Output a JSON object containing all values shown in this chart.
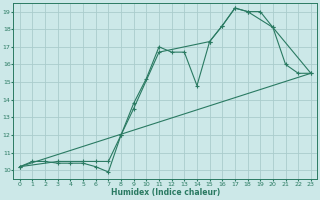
{
  "line1": {
    "x": [
      0,
      1,
      2,
      3,
      4,
      5,
      6,
      7,
      8,
      9,
      10,
      11,
      12,
      13,
      14,
      15,
      16,
      17,
      18,
      19,
      20,
      21,
      22,
      23
    ],
    "y": [
      10.2,
      10.5,
      10.5,
      10.4,
      10.4,
      10.4,
      10.2,
      9.9,
      12.0,
      13.8,
      15.2,
      17.0,
      16.7,
      16.7,
      14.8,
      17.3,
      18.2,
      19.2,
      19.0,
      19.0,
      18.1,
      16.0,
      15.5,
      15.5
    ]
  },
  "line2": {
    "x": [
      0,
      3,
      5,
      6,
      7,
      8,
      9,
      11,
      15,
      16,
      17,
      18,
      20,
      23
    ],
    "y": [
      10.2,
      10.5,
      10.5,
      10.5,
      10.5,
      12.0,
      13.5,
      16.7,
      17.3,
      18.2,
      19.2,
      19.0,
      18.1,
      15.5
    ]
  },
  "line3": {
    "x": [
      0,
      23
    ],
    "y": [
      10.2,
      15.5
    ]
  },
  "color": "#2a7a62",
  "bg_color": "#cce8e8",
  "grid_color": "#aacccc",
  "xlabel": "Humidex (Indice chaleur)",
  "xlim": [
    -0.5,
    23.5
  ],
  "ylim": [
    9.5,
    19.5
  ],
  "xticks": [
    0,
    1,
    2,
    3,
    4,
    5,
    6,
    7,
    8,
    9,
    10,
    11,
    12,
    13,
    14,
    15,
    16,
    17,
    18,
    19,
    20,
    21,
    22,
    23
  ],
  "yticks": [
    10,
    11,
    12,
    13,
    14,
    15,
    16,
    17,
    18,
    19
  ]
}
